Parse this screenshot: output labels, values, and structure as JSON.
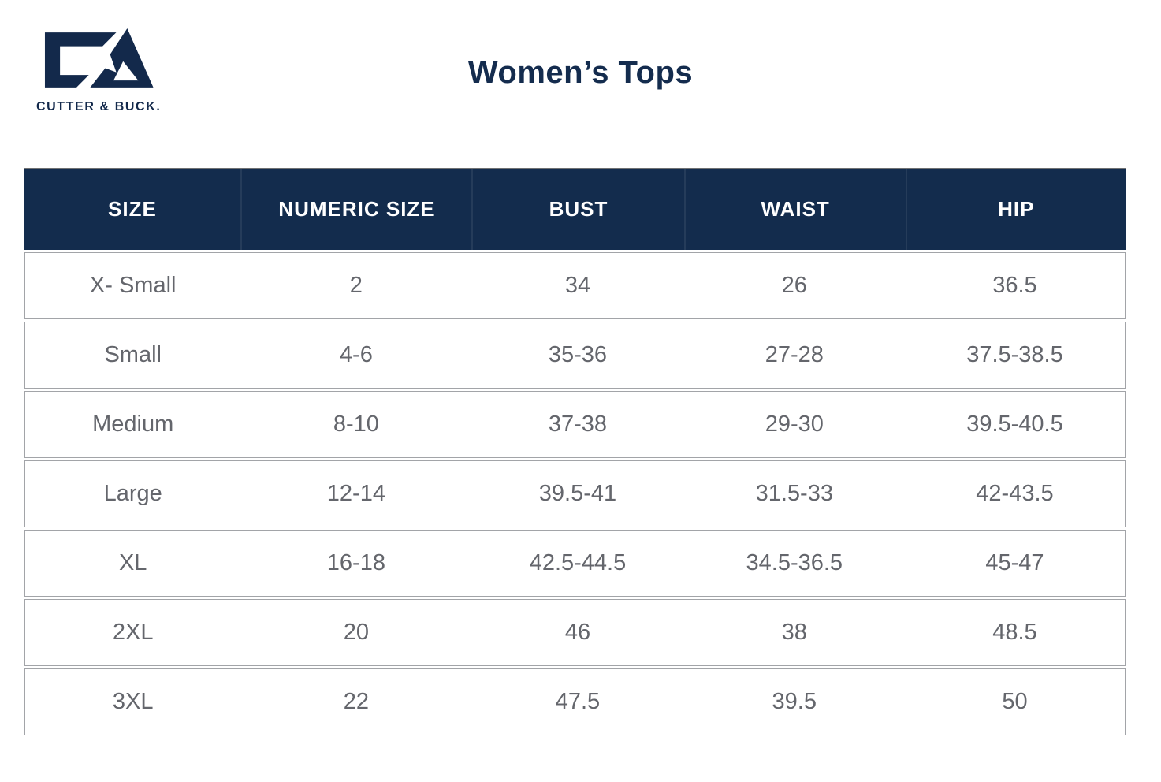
{
  "brand": {
    "wordmark": "CUTTER & BUCK.",
    "logo_mark": "cutter-buck-cb-monogram",
    "navy": "#132c4d"
  },
  "title": "Women’s Tops",
  "table": {
    "columns": [
      "SIZE",
      "NUMERIC SIZE",
      "BUST",
      "WAIST",
      "HIP"
    ],
    "rows": [
      {
        "size": "X- Small",
        "numeric_size": "2",
        "bust": "34",
        "waist": "26",
        "hip": "36.5"
      },
      {
        "size": "Small",
        "numeric_size": "4-6",
        "bust": "35-36",
        "waist": "27-28",
        "hip": "37.5-38.5"
      },
      {
        "size": "Medium",
        "numeric_size": "8-10",
        "bust": "37-38",
        "waist": "29-30",
        "hip": "39.5-40.5"
      },
      {
        "size": "Large",
        "numeric_size": "12-14",
        "bust": "39.5-41",
        "waist": "31.5-33",
        "hip": "42-43.5"
      },
      {
        "size": "XL",
        "numeric_size": "16-18",
        "bust": "42.5-44.5",
        "waist": "34.5-36.5",
        "hip": "45-47"
      },
      {
        "size": "2XL",
        "numeric_size": "20",
        "bust": "46",
        "waist": "38",
        "hip": "48.5"
      },
      {
        "size": "3XL",
        "numeric_size": "22",
        "bust": "47.5",
        "waist": "39.5",
        "hip": "50"
      }
    ]
  },
  "colors": {
    "header_bg": "#132c4d",
    "header_text": "#ffffff",
    "body_text": "#64666c",
    "row_border": "#a2a4a8"
  }
}
